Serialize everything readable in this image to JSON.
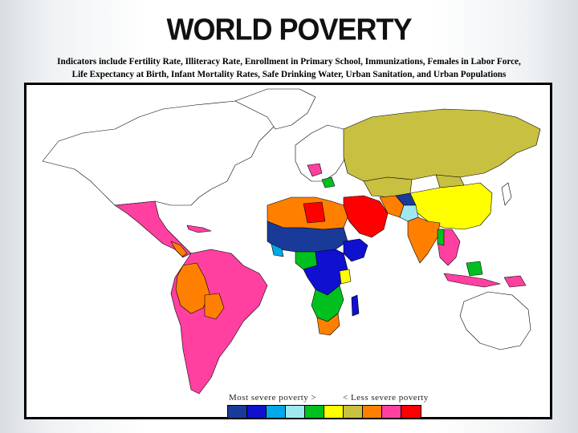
{
  "title": "WORLD POVERTY",
  "subtitle_line1": "Indicators include Fertility Rate, Illiteracy Rate, Enrollment in Primary School, Immunizations, Females in Labor Force,",
  "subtitle_line2": "Life Expectancy at Birth, Infant Mortality Rates, Safe Drinking Water, Urban Sanitation, and Urban Populations",
  "legend": {
    "left_label": "Most severe poverty >",
    "right_label": "< Less severe poverty",
    "colors": [
      "#1a3a9a",
      "#1010d0",
      "#00a8e8",
      "#a0e8f0",
      "#00c020",
      "#ffff00",
      "#c8c040",
      "#ff8000",
      "#ff40a0",
      "#ff0000"
    ]
  },
  "map_colors": {
    "ocean": "#ffffff",
    "unrated": "#ffffff",
    "russia": "#c8c040",
    "china": "#ffff00",
    "latin_america": "#ff40a0",
    "andes": "#ff8000",
    "africa_sahel": "#1a3a9a",
    "africa_central": "#1010d0",
    "africa_south": "#00c020",
    "north_africa": "#ff8000",
    "middle_east": "#ff0000",
    "india": "#ff8000",
    "se_asia": "#ff40a0",
    "outline": "#000000"
  }
}
